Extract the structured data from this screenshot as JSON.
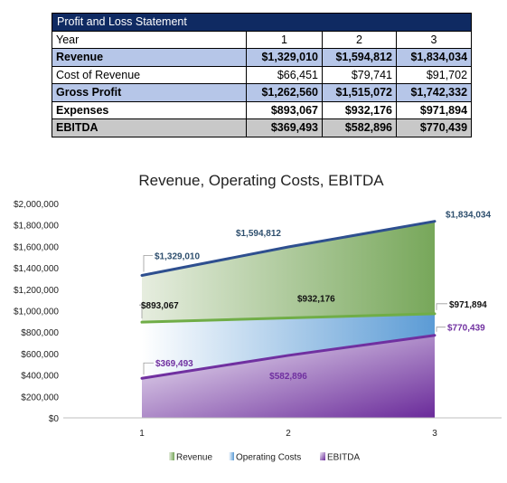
{
  "table": {
    "title": "Profit and Loss Statement",
    "header": {
      "label": "Year",
      "values": [
        "1",
        "2",
        "3"
      ]
    },
    "rows": [
      {
        "label": "Revenue",
        "values": [
          "$1,329,010",
          "$1,594,812",
          "$1,834,034"
        ]
      },
      {
        "label": "Cost of Revenue",
        "values": [
          "$66,451",
          "$79,741",
          "$91,702"
        ]
      },
      {
        "label": "Gross Profit",
        "values": [
          "$1,262,560",
          "$1,515,072",
          "$1,742,332"
        ]
      },
      {
        "label": "Expenses",
        "values": [
          "$893,067",
          "$932,176",
          "$971,894"
        ]
      },
      {
        "label": "EBITDA",
        "values": [
          "$369,493",
          "$582,896",
          "$770,439"
        ]
      }
    ]
  },
  "chart_data": {
    "type": "area",
    "title": "Revenue, Operating Costs, EBITDA",
    "x": [
      1,
      2,
      3
    ],
    "ylim": [
      0,
      2000000
    ],
    "yticks": [
      "$0",
      "$200,000",
      "$400,000",
      "$600,000",
      "$800,000",
      "$1,000,000",
      "$1,200,000",
      "$1,400,000",
      "$1,600,000",
      "$1,800,000",
      "$2,000,000"
    ],
    "xticks": [
      "1",
      "2",
      "3"
    ],
    "legend_position": "bottom",
    "series": [
      {
        "name": "Revenue",
        "values": [
          1329010,
          1594812,
          1834034
        ],
        "labels": [
          "$1,329,010",
          "$1,594,812",
          "$1,834,034"
        ],
        "color": "#2e4f8f",
        "label_color": "#2e4f6e"
      },
      {
        "name": "Operating Costs",
        "values": [
          893067,
          932176,
          971894
        ],
        "labels": [
          "$893,067",
          "$932,176",
          "$971,894"
        ],
        "color": "#70ad47",
        "label_color": "#111111"
      },
      {
        "name": "EBITDA",
        "values": [
          369493,
          582896,
          770439
        ],
        "labels": [
          "$369,493",
          "$582,896",
          "$770,439"
        ],
        "color": "#7030a0",
        "label_color": "#7030a0"
      }
    ]
  }
}
